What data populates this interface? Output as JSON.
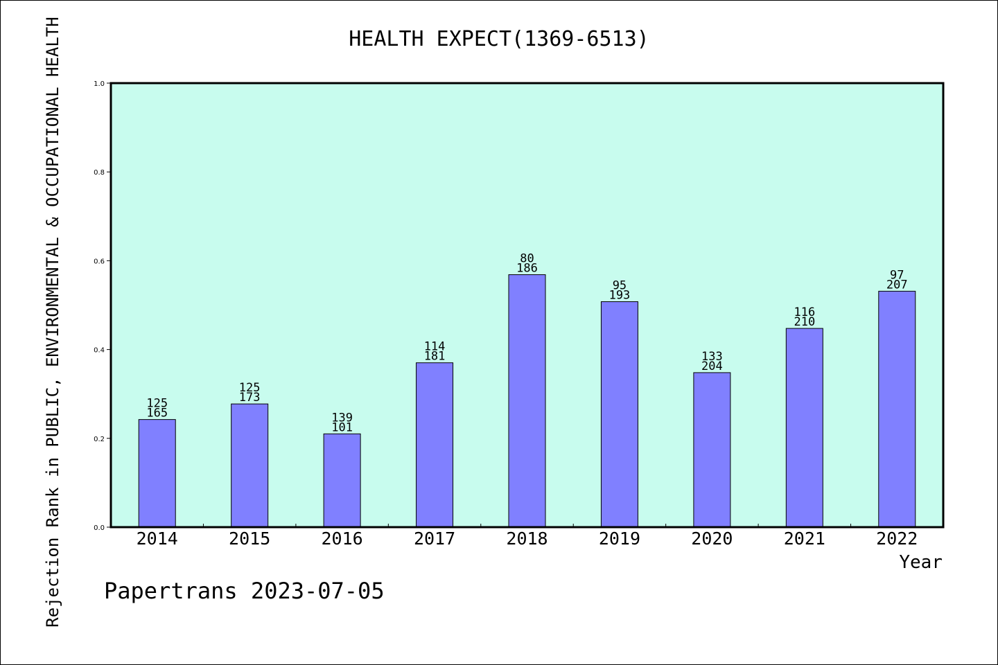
{
  "chart_data": {
    "type": "bar",
    "title": "HEALTH EXPECT(1369-6513)",
    "xlabel": "Year",
    "ylabel": "Rejection Rank in PUBLIC, ENVIRONMENTAL & OCCUPATIONAL HEALTH",
    "ylim": [
      0,
      1.0
    ],
    "yticks": [
      "0.0",
      "0.2",
      "0.4",
      "0.6",
      "0.8",
      "1.0"
    ],
    "grid": false,
    "categories": [
      "2014",
      "2015",
      "2016",
      "2017",
      "2018",
      "2019",
      "2020",
      "2021",
      "2022"
    ],
    "values": [
      0.2424,
      0.2775,
      0.2101,
      0.3702,
      0.5686,
      0.5078,
      0.348,
      0.4476,
      0.5314
    ],
    "label_top": [
      "125",
      "125",
      "139",
      "114",
      "80",
      "95",
      "133",
      "116",
      "97"
    ],
    "label_bottom": [
      "165",
      "173",
      "101",
      "181",
      "186",
      "193",
      "204",
      "210",
      "207"
    ],
    "plot_background": "#c8fcee",
    "bar_color": "#8080ff"
  },
  "footer": {
    "credit": "Papertrans 2023-07-05"
  }
}
